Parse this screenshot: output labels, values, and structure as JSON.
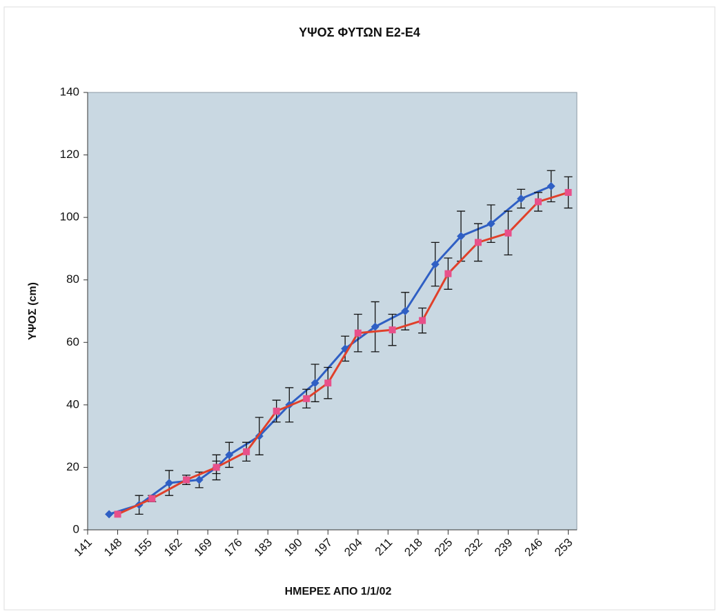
{
  "chart_data": {
    "type": "line",
    "title": "ΥΨΟΣ ΦΥΤΩΝ Ε2-Ε4",
    "x_label": "ΗΜΕΡΕΣ ΑΠΟ 1/1/02",
    "y_label": "ΥΨΟΣ (cm)",
    "xlim": [
      141,
      255
    ],
    "ylim": [
      0,
      140
    ],
    "xticks": [
      141,
      148,
      155,
      162,
      169,
      176,
      183,
      190,
      197,
      204,
      211,
      218,
      225,
      232,
      239,
      246,
      253
    ],
    "yticks": [
      0,
      20,
      40,
      60,
      80,
      100,
      120,
      140
    ],
    "series": [
      {
        "color": "#2f5fc4",
        "marker": "diamond",
        "x": [
          146,
          153,
          160,
          167,
          171,
          174,
          181,
          188,
          194,
          201,
          208,
          215,
          222,
          228,
          235,
          242,
          249
        ],
        "values": [
          5,
          8,
          15,
          16,
          20,
          24,
          30,
          40,
          47,
          58,
          65,
          70,
          85,
          94,
          98,
          106,
          110
        ],
        "errors": [
          0,
          3,
          4,
          2.5,
          4,
          4,
          6,
          5.5,
          6,
          4,
          8,
          6,
          7,
          8,
          6,
          3,
          5
        ]
      },
      {
        "color": "#e0402a",
        "marker": "square",
        "x": [
          148,
          156,
          164,
          171,
          178,
          185,
          192,
          197,
          204,
          212,
          219,
          225,
          232,
          239,
          246,
          253
        ],
        "values": [
          5,
          10,
          16,
          20,
          25,
          38,
          42,
          47,
          63,
          64,
          67,
          82,
          92,
          95,
          105,
          108
        ],
        "errors": [
          0,
          1,
          1.5,
          2,
          3,
          3.5,
          3,
          5,
          6,
          5,
          4,
          5,
          6,
          7,
          3,
          5
        ]
      }
    ]
  }
}
